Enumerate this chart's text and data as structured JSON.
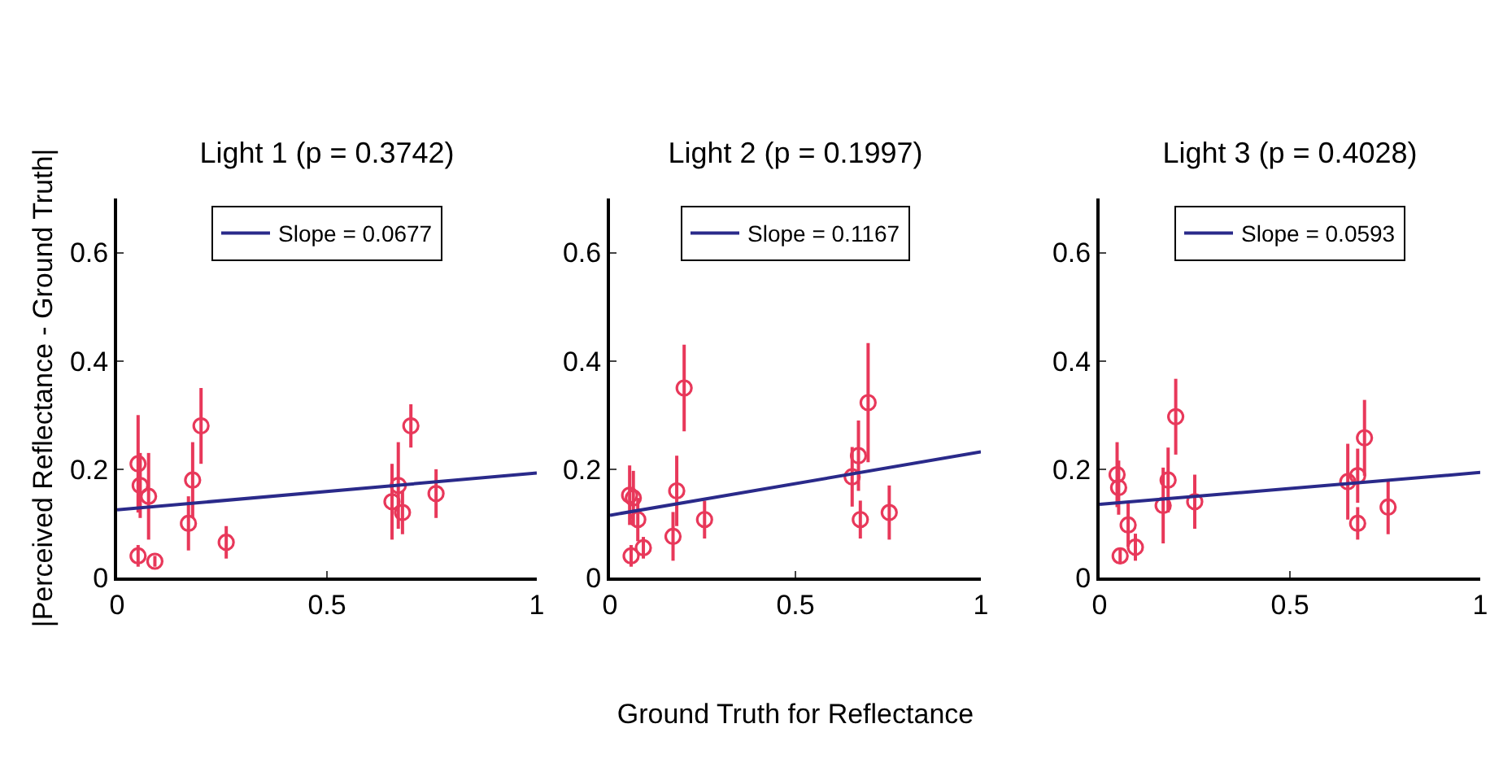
{
  "chart_data": [
    {
      "type": "scatter",
      "title": "Light 1 (p = 0.3742)",
      "ylabel": "|Perceived Reflectance - Ground Truth|",
      "xlim": [
        0,
        1
      ],
      "xticks": [
        0,
        0.5,
        1
      ],
      "ylim": [
        0,
        0.7
      ],
      "yticks": [
        0,
        0.2,
        0.4,
        0.6
      ],
      "grid": false,
      "legend": "top",
      "series": [
        {
          "marker": "circle",
          "color": "#e8385a",
          "x": [
            0.05,
            0.055,
            0.075,
            0.05,
            0.09,
            0.17,
            0.18,
            0.2,
            0.26,
            0.655,
            0.67,
            0.68,
            0.7,
            0.76
          ],
          "values": [
            0.21,
            0.17,
            0.15,
            0.04,
            0.03,
            0.1,
            0.18,
            0.28,
            0.065,
            0.14,
            0.17,
            0.12,
            0.28,
            0.155
          ],
          "errors": [
            0.09,
            0.06,
            0.08,
            0.02,
            0.01,
            0.05,
            0.07,
            0.07,
            0.03,
            0.07,
            0.08,
            0.04,
            0.04,
            0.045
          ]
        },
        {
          "type": "line",
          "marker": "none",
          "name": "Slope = 0.0677",
          "color": "#2a2a8a",
          "x": [
            0,
            1
          ],
          "values": [
            0.125,
            0.193
          ]
        }
      ]
    },
    {
      "type": "scatter",
      "title": "Light 2 (p = 0.1997)",
      "xlabel": "Ground Truth for Reflectance",
      "xlim": [
        0,
        1
      ],
      "xticks": [
        0,
        0.5,
        1
      ],
      "ylim": [
        0,
        0.7
      ],
      "yticks": [
        0,
        0.2,
        0.4,
        0.6
      ],
      "grid": false,
      "legend": "top",
      "series": [
        {
          "marker": "circle",
          "color": "#e8385a",
          "x": [
            0.053,
            0.063,
            0.075,
            0.057,
            0.09,
            0.17,
            0.18,
            0.2,
            0.255,
            0.653,
            0.67,
            0.675,
            0.696,
            0.753
          ],
          "values": [
            0.152,
            0.147,
            0.107,
            0.04,
            0.055,
            0.076,
            0.16,
            0.35,
            0.107,
            0.186,
            0.225,
            0.107,
            0.323,
            0.12
          ],
          "errors": [
            0.055,
            0.05,
            0.04,
            0.02,
            0.02,
            0.045,
            0.065,
            0.08,
            0.035,
            0.055,
            0.065,
            0.035,
            0.11,
            0.05
          ]
        },
        {
          "type": "line",
          "marker": "none",
          "name": "Slope = 0.1167",
          "color": "#2a2a8a",
          "x": [
            0,
            1
          ],
          "values": [
            0.115,
            0.232
          ]
        }
      ]
    },
    {
      "type": "scatter",
      "title": "Light 3 (p = 0.4028)",
      "xlim": [
        0,
        1
      ],
      "xticks": [
        0,
        0.5,
        1
      ],
      "ylim": [
        0,
        0.7
      ],
      "yticks": [
        0,
        0.2,
        0.4,
        0.6
      ],
      "grid": false,
      "legend": "top",
      "series": [
        {
          "marker": "circle",
          "color": "#e8385a",
          "x": [
            0.046,
            0.05,
            0.075,
            0.054,
            0.094,
            0.167,
            0.18,
            0.2,
            0.25,
            0.652,
            0.678,
            0.678,
            0.696,
            0.758
          ],
          "values": [
            0.19,
            0.166,
            0.097,
            0.04,
            0.056,
            0.133,
            0.18,
            0.297,
            0.14,
            0.177,
            0.188,
            0.1,
            0.258,
            0.13
          ],
          "errors": [
            0.06,
            0.05,
            0.04,
            0.015,
            0.025,
            0.07,
            0.06,
            0.07,
            0.05,
            0.07,
            0.05,
            0.03,
            0.07,
            0.05
          ]
        },
        {
          "type": "line",
          "marker": "none",
          "name": "Slope = 0.0593",
          "color": "#2a2a8a",
          "x": [
            0,
            1
          ],
          "values": [
            0.135,
            0.194
          ]
        }
      ]
    }
  ]
}
